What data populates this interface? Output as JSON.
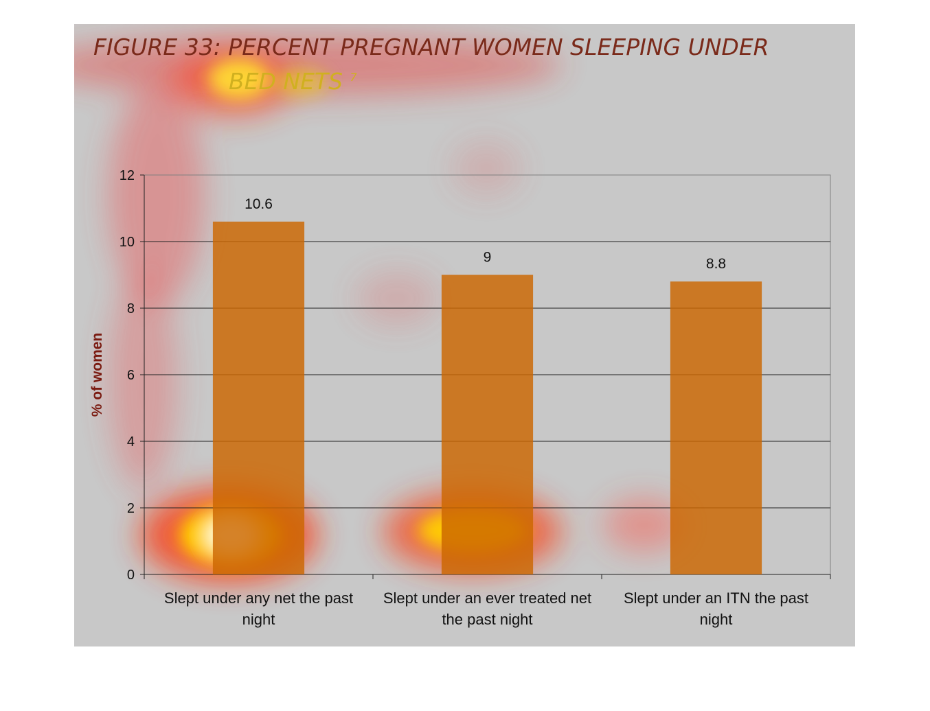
{
  "chart_data": {
    "type": "bar",
    "title_line1": "FIGURE 33: PERCENT PREGNANT WOMEN SLEEPING UNDER",
    "title_line2": "BED NETS",
    "title_superscript": "7",
    "ylabel": "% of women",
    "ylim": [
      0,
      12
    ],
    "yticks": [
      0,
      2,
      4,
      6,
      8,
      10,
      12
    ],
    "categories": [
      "Slept under any net the past night",
      "Slept under an ever treated net the past night",
      "Slept under an ITN the past night"
    ],
    "values": [
      10.6,
      9,
      8.8
    ],
    "data_labels": [
      "10.6",
      "9",
      "8.8"
    ],
    "bar_color": "#cc6600",
    "grid": true
  }
}
